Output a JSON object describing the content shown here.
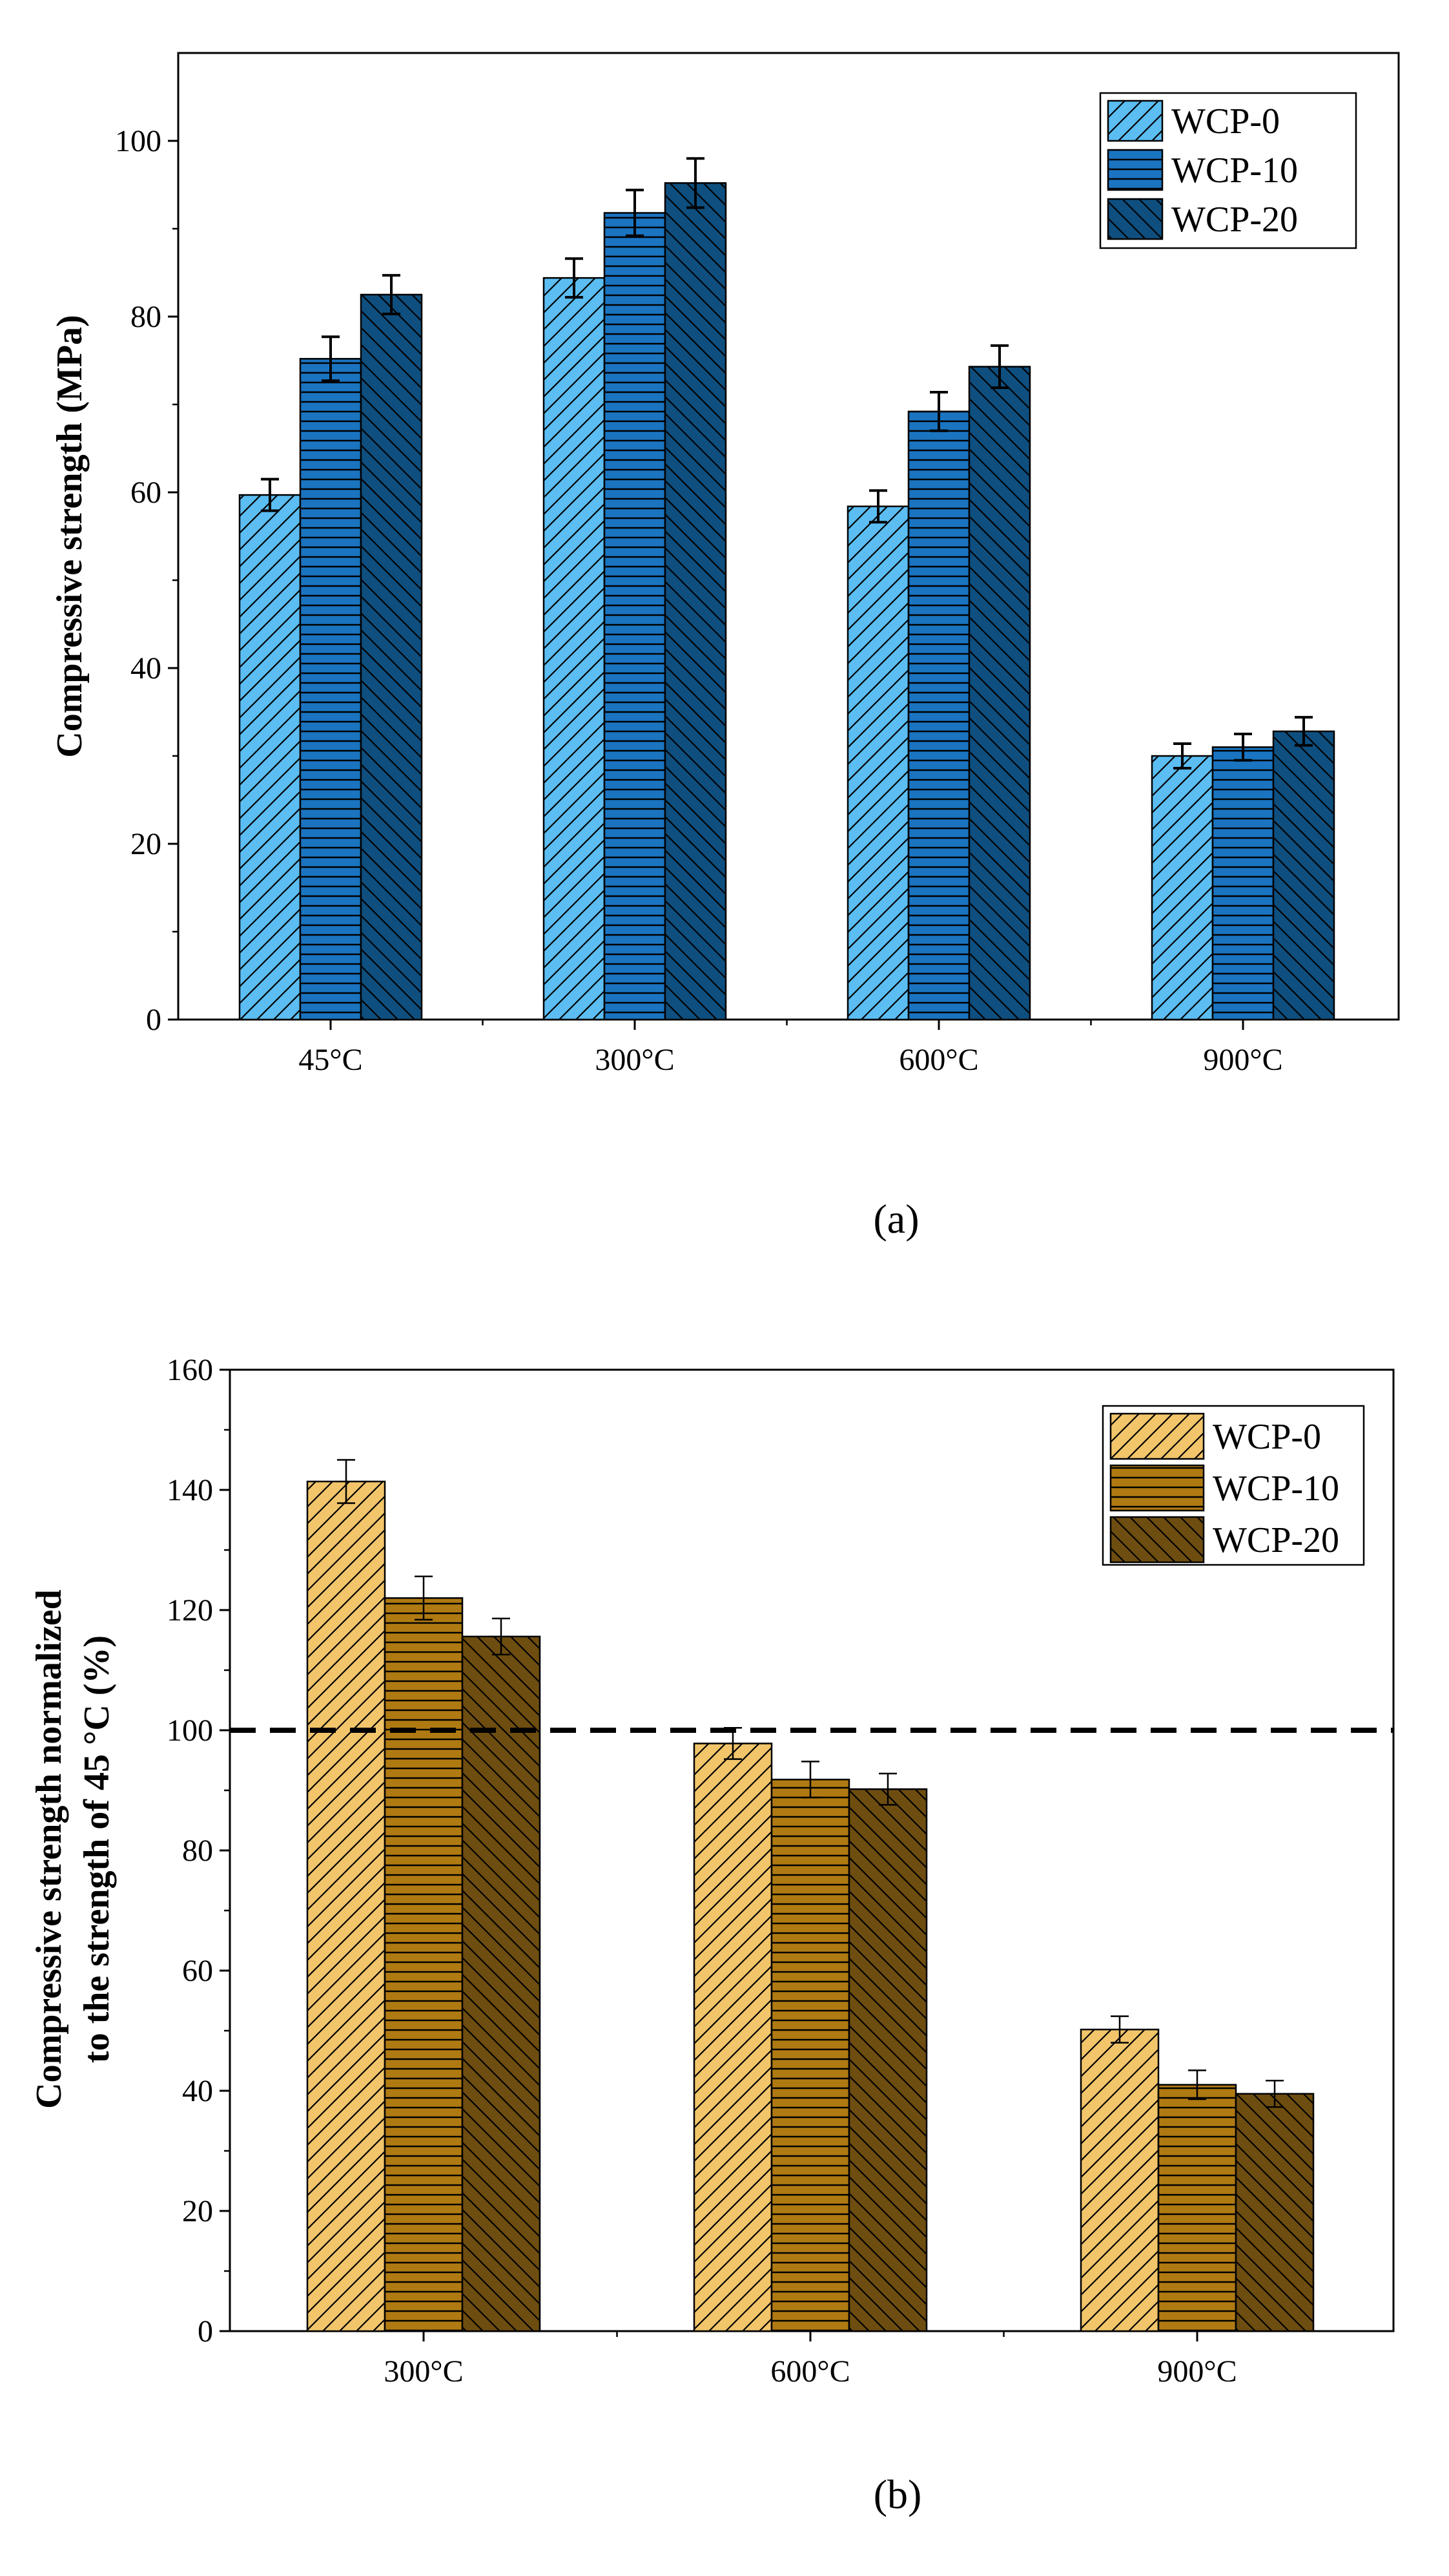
{
  "chart_data": [
    {
      "type": "bar",
      "panel_label": "(a)",
      "categories": [
        "45°C",
        "300°C",
        "600°C",
        "900°C"
      ],
      "ylabel": "Compressive strength (MPa)",
      "ylabel_lines": [
        "Compressive strength (MPa)"
      ],
      "xlabel": "",
      "ylim": [
        0,
        110
      ],
      "yticks": [
        "0",
        "20",
        "40",
        "60",
        "80",
        "100"
      ],
      "ytick_values": [
        0,
        20,
        40,
        60,
        80,
        100
      ],
      "legend_position": "top-right",
      "reference_line": null,
      "series": [
        {
          "name": "WCP-0",
          "color": "#5bbdf2",
          "hatch": "diagonal-forward",
          "values": [
            59.7,
            84.4,
            58.4,
            30.0
          ],
          "errors": [
            1.8,
            2.2,
            1.8,
            1.4
          ]
        },
        {
          "name": "WCP-10",
          "color": "#1a74c0",
          "hatch": "horizontal",
          "values": [
            75.2,
            91.8,
            69.2,
            31.0
          ],
          "errors": [
            2.5,
            2.6,
            2.2,
            1.5
          ]
        },
        {
          "name": "WCP-20",
          "color": "#0e4f7f",
          "hatch": "diagonal-back",
          "values": [
            82.5,
            95.2,
            74.3,
            32.8
          ],
          "errors": [
            2.2,
            2.8,
            2.4,
            1.6
          ]
        }
      ]
    },
    {
      "type": "bar",
      "panel_label": "(b)",
      "categories": [
        "300°C",
        "600°C",
        "900°C"
      ],
      "ylabel": "Compressive strength normalized to the strength of 45 °C (%)",
      "ylabel_lines": [
        "Compressive strength normalized",
        "to the strength of 45 °C (%)"
      ],
      "xlabel": "",
      "ylim": [
        0,
        160
      ],
      "yticks": [
        "0",
        "20",
        "40",
        "60",
        "80",
        "100",
        "120",
        "140",
        "160"
      ],
      "ytick_values": [
        0,
        20,
        40,
        60,
        80,
        100,
        120,
        140,
        160
      ],
      "legend_position": "top-right",
      "reference_line": 100,
      "series": [
        {
          "name": "WCP-0",
          "color": "#f2c56b",
          "hatch": "diagonal-forward",
          "values": [
            141.4,
            97.8,
            50.2
          ],
          "errors": [
            3.6,
            2.6,
            2.2
          ]
        },
        {
          "name": "WCP-10",
          "color": "#b07a12",
          "hatch": "horizontal",
          "values": [
            122.0,
            91.8,
            41.0
          ],
          "errors": [
            3.6,
            3.0,
            2.4
          ]
        },
        {
          "name": "WCP-20",
          "color": "#6e4d10",
          "hatch": "diagonal-back",
          "values": [
            115.6,
            90.2,
            39.5
          ],
          "errors": [
            3.0,
            2.6,
            2.2
          ]
        }
      ]
    }
  ]
}
